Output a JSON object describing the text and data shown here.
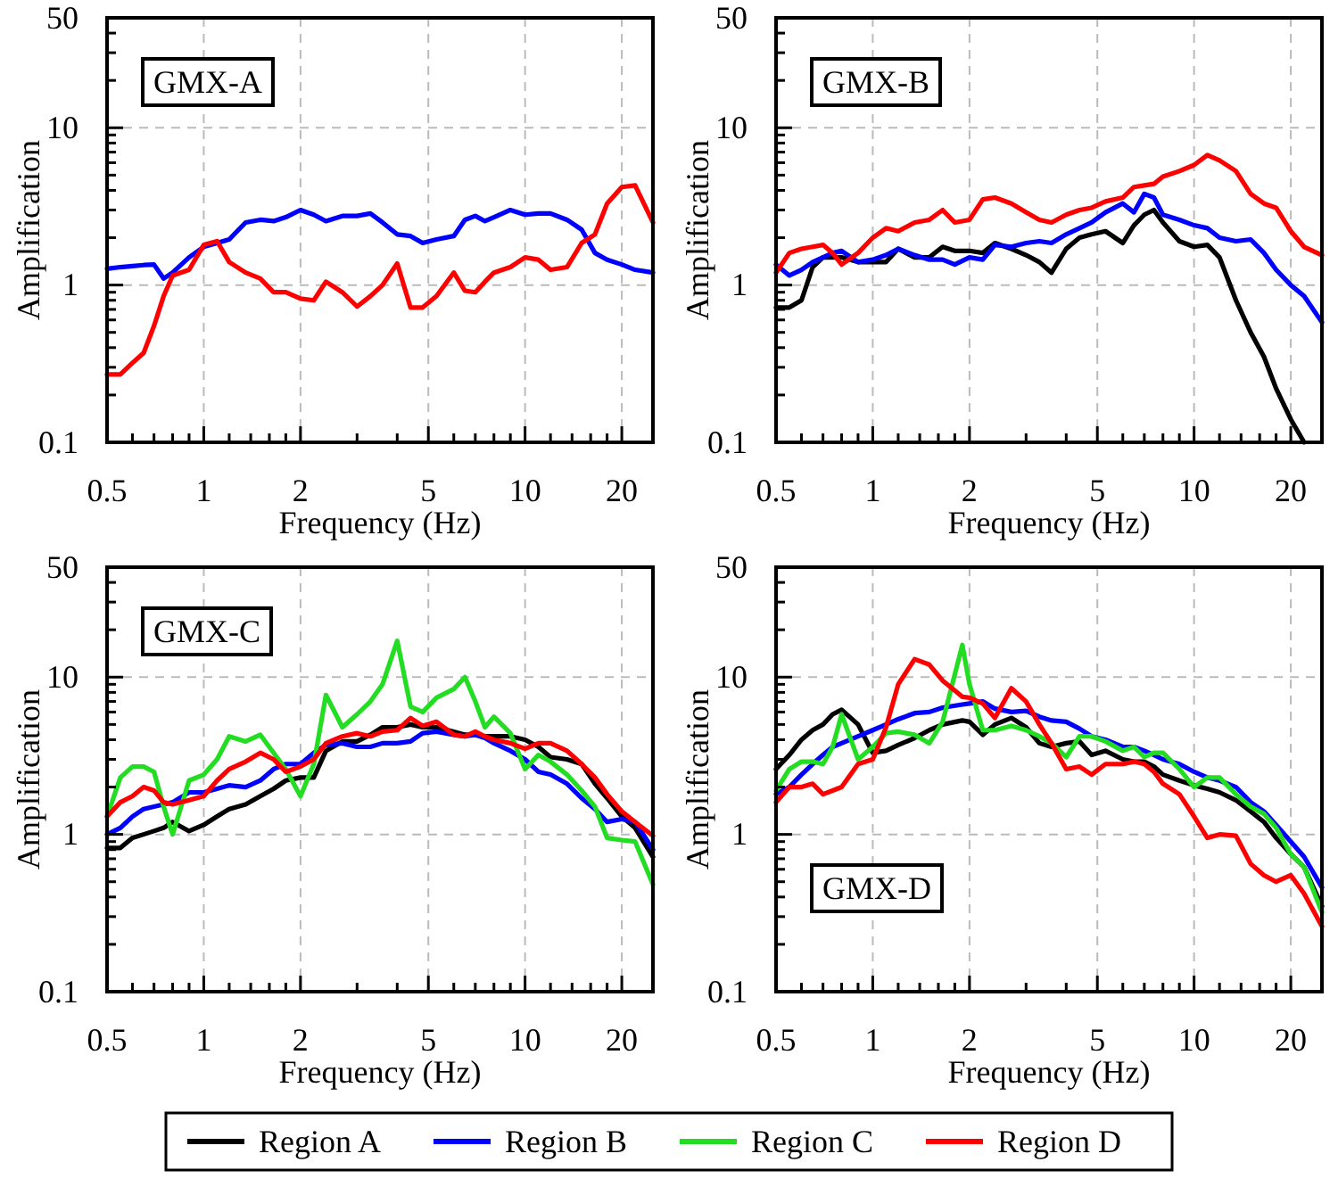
{
  "chart_data": [
    {
      "type": "line",
      "annotations": [
        "GMX-A"
      ],
      "xlabel": "Frequency (Hz)",
      "ylabel": "Amplification",
      "log": "xy",
      "grid": true,
      "legend": "bottom",
      "xlim": [
        0.5,
        25
      ],
      "ylim": [
        0.1,
        50
      ],
      "xticks": [
        0.5,
        {
          "value": 0.6,
          "label": null
        },
        {
          "value": 0.7,
          "label": null
        },
        {
          "value": 0.8,
          "label": null
        },
        {
          "value": 0.9,
          "label": null
        },
        1,
        {
          "value": 1.2,
          "label": null
        },
        {
          "value": 1.4,
          "label": null
        },
        {
          "value": 1.6,
          "label": null
        },
        {
          "value": 1.8,
          "label": null
        },
        2,
        {
          "value": 3,
          "label": null
        },
        {
          "value": 4,
          "label": null
        },
        5,
        {
          "value": 6,
          "label": null
        },
        {
          "value": 7,
          "label": null
        },
        {
          "value": 8,
          "label": null
        },
        {
          "value": 9,
          "label": null
        },
        10,
        {
          "value": 12,
          "label": null
        },
        {
          "value": 14,
          "label": null
        },
        {
          "value": 16,
          "label": null
        },
        {
          "value": 18,
          "label": null
        },
        20
      ],
      "yticks": [
        0.1,
        {
          "value": 0.2,
          "label": null
        },
        {
          "value": 0.3,
          "label": null
        },
        {
          "value": 0.4,
          "label": null
        },
        {
          "value": 0.5,
          "label": null
        },
        {
          "value": 0.6,
          "label": null
        },
        {
          "value": 0.7,
          "label": null
        },
        {
          "value": 0.8,
          "label": null
        },
        {
          "value": 0.9,
          "label": null
        },
        1,
        {
          "value": 2,
          "label": null
        },
        {
          "value": 3,
          "label": null
        },
        {
          "value": 4,
          "label": null
        },
        {
          "value": 5,
          "label": null
        },
        {
          "value": 6,
          "label": null
        },
        {
          "value": 7,
          "label": null
        },
        {
          "value": 8,
          "label": null
        },
        {
          "value": 9,
          "label": null
        },
        10,
        {
          "value": 20,
          "label": null
        },
        {
          "value": 30,
          "label": null
        },
        {
          "value": 40,
          "label": null
        },
        50
      ],
      "x": [
        0.5,
        0.55,
        0.6,
        0.65,
        0.7,
        0.75,
        0.8,
        0.9,
        1,
        1.1,
        1.2,
        1.35,
        1.5,
        1.65,
        1.8,
        2,
        2.2,
        2.4,
        2.7,
        3,
        3.3,
        3.6,
        4,
        4.4,
        4.8,
        5.3,
        6,
        6.5,
        7,
        7.5,
        8,
        9,
        10,
        11,
        12,
        13.5,
        15,
        16.5,
        18,
        20,
        22,
        25
      ],
      "series": [
        {
          "name": "Region B",
          "color": "#0000ff",
          "values": [
            1.27,
            1.3,
            1.32,
            1.34,
            1.35,
            1.1,
            1.2,
            1.5,
            1.75,
            1.85,
            1.95,
            2.5,
            2.6,
            2.55,
            2.7,
            3.0,
            2.8,
            2.55,
            2.75,
            2.75,
            2.85,
            2.5,
            2.1,
            2.05,
            1.85,
            1.95,
            2.05,
            2.6,
            2.75,
            2.55,
            2.7,
            3.0,
            2.8,
            2.85,
            2.85,
            2.6,
            2.25,
            1.6,
            1.45,
            1.35,
            1.25,
            1.2
          ]
        },
        {
          "name": "Region D",
          "color": "#ff0000",
          "values": [
            0.27,
            0.27,
            0.32,
            0.37,
            0.55,
            0.85,
            1.15,
            1.25,
            1.8,
            1.9,
            1.4,
            1.2,
            1.1,
            0.9,
            0.9,
            0.82,
            0.8,
            1.05,
            0.9,
            0.73,
            0.85,
            1.0,
            1.37,
            0.72,
            0.72,
            0.85,
            1.2,
            0.92,
            0.9,
            1.05,
            1.2,
            1.3,
            1.5,
            1.45,
            1.25,
            1.3,
            1.85,
            2.1,
            3.3,
            4.2,
            4.3,
            2.5
          ]
        }
      ]
    },
    {
      "type": "line",
      "annotations": [
        "GMX-B"
      ],
      "xlabel": "Frequency (Hz)",
      "ylabel": "Amplification",
      "log": "xy",
      "grid": true,
      "legend": "bottom",
      "xlim": [
        0.5,
        25
      ],
      "ylim": [
        0.1,
        50
      ],
      "xticks": [
        0.5,
        {
          "value": 0.6,
          "label": null
        },
        {
          "value": 0.7,
          "label": null
        },
        {
          "value": 0.8,
          "label": null
        },
        {
          "value": 0.9,
          "label": null
        },
        1,
        {
          "value": 1.2,
          "label": null
        },
        {
          "value": 1.4,
          "label": null
        },
        {
          "value": 1.6,
          "label": null
        },
        {
          "value": 1.8,
          "label": null
        },
        2,
        {
          "value": 3,
          "label": null
        },
        {
          "value": 4,
          "label": null
        },
        5,
        {
          "value": 6,
          "label": null
        },
        {
          "value": 7,
          "label": null
        },
        {
          "value": 8,
          "label": null
        },
        {
          "value": 9,
          "label": null
        },
        10,
        {
          "value": 12,
          "label": null
        },
        {
          "value": 14,
          "label": null
        },
        {
          "value": 16,
          "label": null
        },
        {
          "value": 18,
          "label": null
        },
        20
      ],
      "yticks": [
        0.1,
        {
          "value": 0.2,
          "label": null
        },
        {
          "value": 0.3,
          "label": null
        },
        {
          "value": 0.4,
          "label": null
        },
        {
          "value": 0.5,
          "label": null
        },
        {
          "value": 0.6,
          "label": null
        },
        {
          "value": 0.7,
          "label": null
        },
        {
          "value": 0.8,
          "label": null
        },
        {
          "value": 0.9,
          "label": null
        },
        1,
        {
          "value": 2,
          "label": null
        },
        {
          "value": 3,
          "label": null
        },
        {
          "value": 4,
          "label": null
        },
        {
          "value": 5,
          "label": null
        },
        {
          "value": 6,
          "label": null
        },
        {
          "value": 7,
          "label": null
        },
        {
          "value": 8,
          "label": null
        },
        {
          "value": 9,
          "label": null
        },
        10,
        {
          "value": 20,
          "label": null
        },
        {
          "value": 30,
          "label": null
        },
        {
          "value": 40,
          "label": null
        },
        50
      ],
      "x": [
        0.5,
        0.55,
        0.6,
        0.65,
        0.7,
        0.75,
        0.8,
        0.9,
        1,
        1.1,
        1.2,
        1.35,
        1.5,
        1.65,
        1.8,
        2,
        2.2,
        2.4,
        2.7,
        3,
        3.3,
        3.6,
        4,
        4.4,
        4.8,
        5.3,
        6,
        6.5,
        7,
        7.5,
        8,
        9,
        10,
        11,
        12,
        13.5,
        15,
        16.5,
        18,
        20,
        22,
        25
      ],
      "series": [
        {
          "name": "Region A",
          "color": "#000000",
          "values": [
            0.72,
            0.72,
            0.8,
            1.3,
            1.5,
            1.5,
            1.5,
            1.4,
            1.4,
            1.4,
            1.7,
            1.5,
            1.5,
            1.75,
            1.65,
            1.65,
            1.6,
            1.85,
            1.7,
            1.55,
            1.4,
            1.2,
            1.7,
            2.0,
            2.1,
            2.2,
            1.85,
            2.4,
            2.8,
            3.0,
            2.5,
            1.9,
            1.75,
            1.8,
            1.5,
            0.8,
            0.5,
            0.35,
            0.22,
            0.14,
            0.1,
            null
          ]
        },
        {
          "name": "Region B",
          "color": "#0000ff",
          "values": [
            1.35,
            1.15,
            1.25,
            1.4,
            1.5,
            1.6,
            1.65,
            1.4,
            1.45,
            1.55,
            1.7,
            1.55,
            1.45,
            1.45,
            1.35,
            1.5,
            1.45,
            1.8,
            1.75,
            1.85,
            1.9,
            1.85,
            2.1,
            2.3,
            2.5,
            2.9,
            3.3,
            2.9,
            3.8,
            3.6,
            2.8,
            2.6,
            2.4,
            2.3,
            2.0,
            1.9,
            1.95,
            1.6,
            1.25,
            1.0,
            0.85,
            0.58
          ]
        },
        {
          "name": "Region D",
          "color": "#ff0000",
          "values": [
            1.2,
            1.6,
            1.7,
            1.75,
            1.8,
            1.6,
            1.35,
            1.6,
            2.0,
            2.3,
            2.2,
            2.5,
            2.6,
            3.0,
            2.5,
            2.6,
            3.5,
            3.6,
            3.3,
            2.9,
            2.6,
            2.5,
            2.8,
            3.0,
            3.1,
            3.4,
            3.6,
            4.2,
            4.3,
            4.4,
            4.9,
            5.3,
            5.8,
            6.7,
            6.2,
            5.3,
            3.8,
            3.3,
            3.1,
            2.2,
            1.75,
            1.55
          ]
        }
      ]
    },
    {
      "type": "line",
      "annotations": [
        "GMX-C"
      ],
      "xlabel": "Frequency (Hz)",
      "ylabel": "Amplification",
      "log": "xy",
      "grid": true,
      "legend": "bottom",
      "xlim": [
        0.5,
        25
      ],
      "ylim": [
        0.1,
        50
      ],
      "xticks": [
        0.5,
        {
          "value": 0.6,
          "label": null
        },
        {
          "value": 0.7,
          "label": null
        },
        {
          "value": 0.8,
          "label": null
        },
        {
          "value": 0.9,
          "label": null
        },
        1,
        {
          "value": 1.2,
          "label": null
        },
        {
          "value": 1.4,
          "label": null
        },
        {
          "value": 1.6,
          "label": null
        },
        {
          "value": 1.8,
          "label": null
        },
        2,
        {
          "value": 3,
          "label": null
        },
        {
          "value": 4,
          "label": null
        },
        5,
        {
          "value": 6,
          "label": null
        },
        {
          "value": 7,
          "label": null
        },
        {
          "value": 8,
          "label": null
        },
        {
          "value": 9,
          "label": null
        },
        10,
        {
          "value": 12,
          "label": null
        },
        {
          "value": 14,
          "label": null
        },
        {
          "value": 16,
          "label": null
        },
        {
          "value": 18,
          "label": null
        },
        20
      ],
      "yticks": [
        0.1,
        {
          "value": 0.2,
          "label": null
        },
        {
          "value": 0.3,
          "label": null
        },
        {
          "value": 0.4,
          "label": null
        },
        {
          "value": 0.5,
          "label": null
        },
        {
          "value": 0.6,
          "label": null
        },
        {
          "value": 0.7,
          "label": null
        },
        {
          "value": 0.8,
          "label": null
        },
        {
          "value": 0.9,
          "label": null
        },
        1,
        {
          "value": 2,
          "label": null
        },
        {
          "value": 3,
          "label": null
        },
        {
          "value": 4,
          "label": null
        },
        {
          "value": 5,
          "label": null
        },
        {
          "value": 6,
          "label": null
        },
        {
          "value": 7,
          "label": null
        },
        {
          "value": 8,
          "label": null
        },
        {
          "value": 9,
          "label": null
        },
        10,
        {
          "value": 20,
          "label": null
        },
        {
          "value": 30,
          "label": null
        },
        {
          "value": 40,
          "label": null
        },
        50
      ],
      "x": [
        0.5,
        0.55,
        0.6,
        0.65,
        0.7,
        0.75,
        0.8,
        0.9,
        1,
        1.1,
        1.2,
        1.35,
        1.5,
        1.65,
        1.8,
        2,
        2.2,
        2.4,
        2.7,
        3,
        3.3,
        3.6,
        4,
        4.4,
        4.8,
        5.3,
        6,
        6.5,
        7,
        7.5,
        8,
        9,
        10,
        11,
        12,
        13.5,
        15,
        16.5,
        18,
        20,
        22,
        25
      ],
      "series": [
        {
          "name": "Region A",
          "color": "#000000",
          "values": [
            0.82,
            0.82,
            0.95,
            1.0,
            1.05,
            1.1,
            1.2,
            1.05,
            1.15,
            1.3,
            1.45,
            1.55,
            1.75,
            1.95,
            2.2,
            2.3,
            2.3,
            3.4,
            3.9,
            3.9,
            4.3,
            4.8,
            4.8,
            5.0,
            4.8,
            4.8,
            4.5,
            4.3,
            4.3,
            4.2,
            4.2,
            4.2,
            4.0,
            3.6,
            3.1,
            3.0,
            2.8,
            2.1,
            1.7,
            1.3,
            1.1,
            0.72
          ]
        },
        {
          "name": "Region B",
          "color": "#0000ff",
          "values": [
            1.0,
            1.1,
            1.3,
            1.45,
            1.5,
            1.55,
            1.6,
            1.85,
            1.85,
            1.95,
            2.05,
            2.0,
            2.2,
            2.6,
            2.8,
            2.8,
            3.3,
            3.7,
            3.8,
            3.6,
            3.6,
            3.8,
            3.8,
            3.9,
            4.4,
            4.5,
            4.3,
            4.2,
            4.3,
            4.1,
            3.8,
            3.4,
            3.0,
            2.5,
            2.4,
            2.1,
            1.7,
            1.45,
            1.2,
            1.25,
            1.2,
            0.8
          ]
        },
        {
          "name": "Region C",
          "color": "#22dd22",
          "values": [
            1.3,
            2.3,
            2.7,
            2.7,
            2.5,
            1.5,
            1.0,
            2.2,
            2.4,
            3.0,
            4.2,
            3.9,
            4.3,
            3.3,
            2.6,
            1.75,
            2.8,
            7.7,
            4.8,
            5.8,
            7.0,
            9.0,
            17,
            6.5,
            6.0,
            7.4,
            8.4,
            10,
            7.0,
            4.8,
            5.6,
            4.4,
            2.6,
            3.2,
            2.9,
            2.4,
            1.9,
            1.5,
            0.95,
            0.92,
            0.9,
            0.48
          ]
        },
        {
          "name": "Region D",
          "color": "#ff0000",
          "values": [
            1.3,
            1.6,
            1.75,
            2.0,
            1.9,
            1.6,
            1.55,
            1.65,
            1.75,
            2.2,
            2.6,
            2.9,
            3.3,
            3.0,
            2.5,
            2.7,
            3.0,
            3.8,
            4.2,
            4.4,
            4.2,
            4.5,
            4.6,
            5.5,
            4.9,
            5.2,
            4.3,
            4.2,
            4.5,
            4.2,
            4.0,
            3.8,
            3.5,
            3.8,
            3.8,
            3.4,
            2.8,
            2.3,
            1.8,
            1.4,
            1.2,
            0.98
          ]
        }
      ]
    },
    {
      "type": "line",
      "annotations": [
        "GMX-D"
      ],
      "xlabel": "Frequency (Hz)",
      "ylabel": "Amplification",
      "log": "xy",
      "grid": true,
      "legend": "bottom",
      "xlim": [
        0.5,
        25
      ],
      "ylim": [
        0.1,
        50
      ],
      "xticks": [
        0.5,
        {
          "value": 0.6,
          "label": null
        },
        {
          "value": 0.7,
          "label": null
        },
        {
          "value": 0.8,
          "label": null
        },
        {
          "value": 0.9,
          "label": null
        },
        1,
        {
          "value": 1.2,
          "label": null
        },
        {
          "value": 1.4,
          "label": null
        },
        {
          "value": 1.6,
          "label": null
        },
        {
          "value": 1.8,
          "label": null
        },
        2,
        {
          "value": 3,
          "label": null
        },
        {
          "value": 4,
          "label": null
        },
        5,
        {
          "value": 6,
          "label": null
        },
        {
          "value": 7,
          "label": null
        },
        {
          "value": 8,
          "label": null
        },
        {
          "value": 9,
          "label": null
        },
        10,
        {
          "value": 12,
          "label": null
        },
        {
          "value": 14,
          "label": null
        },
        {
          "value": 16,
          "label": null
        },
        {
          "value": 18,
          "label": null
        },
        20
      ],
      "yticks": [
        0.1,
        {
          "value": 0.2,
          "label": null
        },
        {
          "value": 0.3,
          "label": null
        },
        {
          "value": 0.4,
          "label": null
        },
        {
          "value": 0.5,
          "label": null
        },
        {
          "value": 0.6,
          "label": null
        },
        {
          "value": 0.7,
          "label": null
        },
        {
          "value": 0.8,
          "label": null
        },
        {
          "value": 0.9,
          "label": null
        },
        1,
        {
          "value": 2,
          "label": null
        },
        {
          "value": 3,
          "label": null
        },
        {
          "value": 4,
          "label": null
        },
        {
          "value": 5,
          "label": null
        },
        {
          "value": 6,
          "label": null
        },
        {
          "value": 7,
          "label": null
        },
        {
          "value": 8,
          "label": null
        },
        {
          "value": 9,
          "label": null
        },
        10,
        {
          "value": 20,
          "label": null
        },
        {
          "value": 30,
          "label": null
        },
        {
          "value": 40,
          "label": null
        },
        50
      ],
      "x": [
        0.5,
        0.55,
        0.6,
        0.65,
        0.7,
        0.75,
        0.8,
        0.9,
        1,
        1.1,
        1.2,
        1.35,
        1.5,
        1.65,
        1.9,
        2,
        2.2,
        2.4,
        2.7,
        3,
        3.3,
        3.6,
        4,
        4.4,
        4.8,
        5.3,
        6,
        6.5,
        7,
        7.5,
        8,
        9,
        10,
        11,
        12,
        13.5,
        15,
        16.5,
        18,
        20,
        22,
        25
      ],
      "series": [
        {
          "name": "Region A",
          "color": "#000000",
          "values": [
            2.6,
            3.2,
            4.0,
            4.6,
            5.0,
            5.8,
            6.2,
            5.0,
            3.3,
            3.4,
            3.7,
            4.1,
            4.6,
            5.0,
            5.3,
            5.2,
            4.3,
            5.0,
            5.5,
            4.8,
            3.8,
            3.6,
            3.8,
            3.9,
            3.2,
            3.4,
            3.0,
            2.9,
            2.9,
            2.7,
            2.4,
            2.2,
            2.05,
            1.95,
            1.85,
            1.65,
            1.4,
            1.2,
            0.95,
            0.75,
            0.62,
            0.35
          ]
        },
        {
          "name": "Region B",
          "color": "#0000ff",
          "values": [
            1.8,
            2.0,
            2.4,
            2.8,
            3.2,
            3.6,
            3.8,
            4.2,
            4.6,
            5.0,
            5.4,
            5.9,
            6.0,
            6.4,
            6.7,
            6.8,
            7.0,
            6.3,
            6.0,
            6.1,
            5.6,
            5.3,
            5.2,
            4.7,
            4.2,
            4.0,
            3.6,
            3.6,
            3.4,
            3.2,
            3.0,
            2.8,
            2.5,
            2.3,
            2.2,
            2.0,
            1.6,
            1.4,
            1.15,
            0.9,
            0.72,
            0.46
          ]
        },
        {
          "name": "Region C",
          "color": "#22dd22",
          "values": [
            1.9,
            2.6,
            2.9,
            2.9,
            2.8,
            3.6,
            5.8,
            3.0,
            3.6,
            4.4,
            4.5,
            4.3,
            3.8,
            5.2,
            16,
            9.0,
            4.6,
            4.6,
            4.9,
            4.6,
            4.2,
            3.8,
            3.1,
            4.2,
            4.2,
            3.9,
            3.4,
            3.6,
            3.1,
            3.3,
            3.3,
            2.6,
            2.0,
            2.3,
            2.3,
            1.8,
            1.5,
            1.35,
            1.1,
            0.75,
            0.62,
            0.32
          ]
        },
        {
          "name": "Region D",
          "color": "#ff0000",
          "values": [
            1.6,
            2.0,
            2.0,
            2.1,
            1.8,
            1.9,
            2.0,
            2.8,
            3.0,
            4.8,
            9.0,
            13,
            12,
            9.5,
            7.5,
            7.4,
            6.8,
            5.5,
            8.5,
            7.0,
            5.0,
            3.8,
            2.6,
            2.7,
            2.4,
            2.8,
            2.8,
            2.9,
            2.8,
            2.5,
            2.1,
            1.8,
            1.3,
            0.95,
            1.0,
            0.98,
            0.65,
            0.55,
            0.5,
            0.55,
            0.42,
            0.26
          ]
        }
      ]
    }
  ]
}
